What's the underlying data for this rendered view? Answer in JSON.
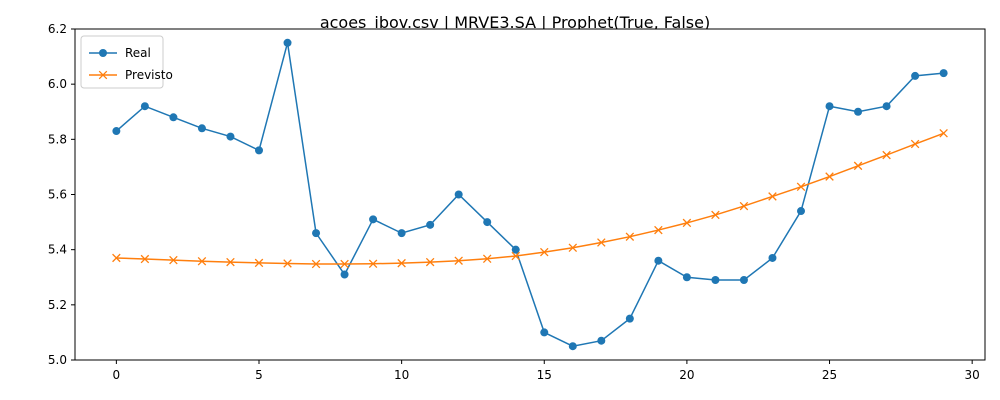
{
  "chart_data": {
    "type": "line",
    "title": "acoes_ibov.csv | MRVE3.SA | Prophet(True, False)",
    "xlabel": "",
    "ylabel": "",
    "xlim": [
      -1.45,
      30.45
    ],
    "ylim": [
      5.0,
      6.2
    ],
    "x_ticks": [
      0,
      5,
      10,
      15,
      20,
      25,
      30
    ],
    "y_ticks": [
      5.0,
      5.2,
      5.4,
      5.6,
      5.8,
      6.0,
      6.2
    ],
    "grid": false,
    "legend_position": "top-left",
    "x": [
      0,
      1,
      2,
      3,
      4,
      5,
      6,
      7,
      8,
      9,
      10,
      11,
      12,
      13,
      14,
      15,
      16,
      17,
      18,
      19,
      20,
      21,
      22,
      23,
      24,
      25,
      26,
      27,
      28,
      29
    ],
    "series": [
      {
        "name": "Real",
        "color": "#1f77b4",
        "marker": "circle",
        "values": [
          5.83,
          5.92,
          5.88,
          5.84,
          5.81,
          5.76,
          6.15,
          5.46,
          5.31,
          5.51,
          5.46,
          5.49,
          5.6,
          5.5,
          5.4,
          5.1,
          5.05,
          5.07,
          5.15,
          5.36,
          5.3,
          5.29,
          5.29,
          5.37,
          5.54,
          5.92,
          5.9,
          5.92,
          6.03,
          6.04
        ]
      },
      {
        "name": "Previsto",
        "color": "#ff7f0e",
        "marker": "x",
        "values": [
          5.37,
          5.366,
          5.362,
          5.358,
          5.355,
          5.352,
          5.35,
          5.348,
          5.348,
          5.349,
          5.351,
          5.355,
          5.36,
          5.367,
          5.377,
          5.391,
          5.407,
          5.426,
          5.447,
          5.471,
          5.497,
          5.526,
          5.558,
          5.593,
          5.628,
          5.665,
          5.704,
          5.743,
          5.783,
          5.822
        ]
      }
    ]
  }
}
